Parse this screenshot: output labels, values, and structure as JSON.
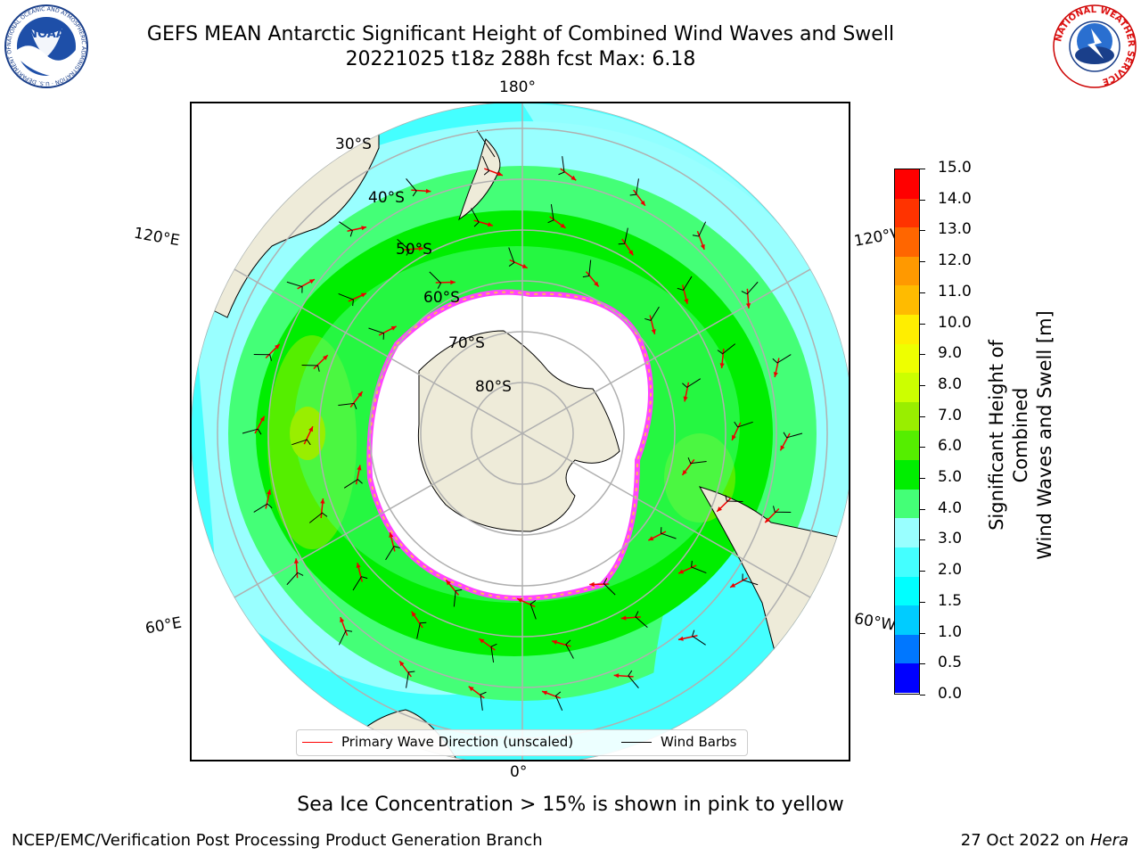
{
  "title": {
    "line1": "GEFS MEAN Antarctic Significant Height of Combined Wind Waves and Swell",
    "line2": "20221025 t18z 288h fcst   Max: 6.18"
  },
  "logos": {
    "left_text": "NOAA",
    "left_ring": "NATIONAL OCEANIC AND ATMOSPHERIC ADMINISTRATION · U.S. DEPARTMENT OF COMMERCE",
    "right_ring": "NATIONAL WEATHER SERVICE"
  },
  "map": {
    "lon_labels": {
      "top": "180°",
      "bottom": "0°",
      "left_upper": "120°E",
      "left_lower": "60°E",
      "right_upper": "120°W",
      "right_lower": "60°W"
    },
    "lat_labels": [
      "30°S",
      "40°S",
      "50°S",
      "60°S",
      "70°S",
      "80°S"
    ],
    "colors": {
      "land": "#eeebd9",
      "ice": "#ffffff",
      "ice_edge_pink": "#ff44ff",
      "ice_edge_orange": "#ffbb55",
      "grid": "#b0b0b0",
      "arrow": "#ee0000",
      "barb": "#000000"
    }
  },
  "legend": {
    "primary_label": "Primary Wave Direction (unscaled)",
    "primary_color": "#ff0000",
    "barb_label": "Wind Barbs",
    "barb_color": "#000000"
  },
  "colorbar": {
    "label_line1": "Significant Height of Combined",
    "label_line2": "Wind Waves and Swell [m]",
    "ticks": [
      "0.0",
      "0.5",
      "1.0",
      "1.5",
      "2.0",
      "3.0",
      "4.0",
      "5.0",
      "6.0",
      "7.0",
      "8.0",
      "9.0",
      "10.0",
      "11.0",
      "12.0",
      "13.0",
      "14.0",
      "15.0"
    ],
    "colors": [
      "#0000ff",
      "#0077ff",
      "#00ccff",
      "#00ffff",
      "#44ffff",
      "#99ffff",
      "#44ff77",
      "#00ee00",
      "#55ee00",
      "#99ee00",
      "#ccff00",
      "#eeff00",
      "#ffee00",
      "#ffbb00",
      "#ff9900",
      "#ff6600",
      "#ff3300",
      "#ff0000"
    ]
  },
  "caption": "Sea Ice Concentration > 15% is shown in pink to yellow",
  "footer": {
    "left": "NCEP/EMC/Verification Post Processing Product Generation Branch",
    "right_date": "27 Oct 2022 on",
    "right_host": "Hera"
  }
}
